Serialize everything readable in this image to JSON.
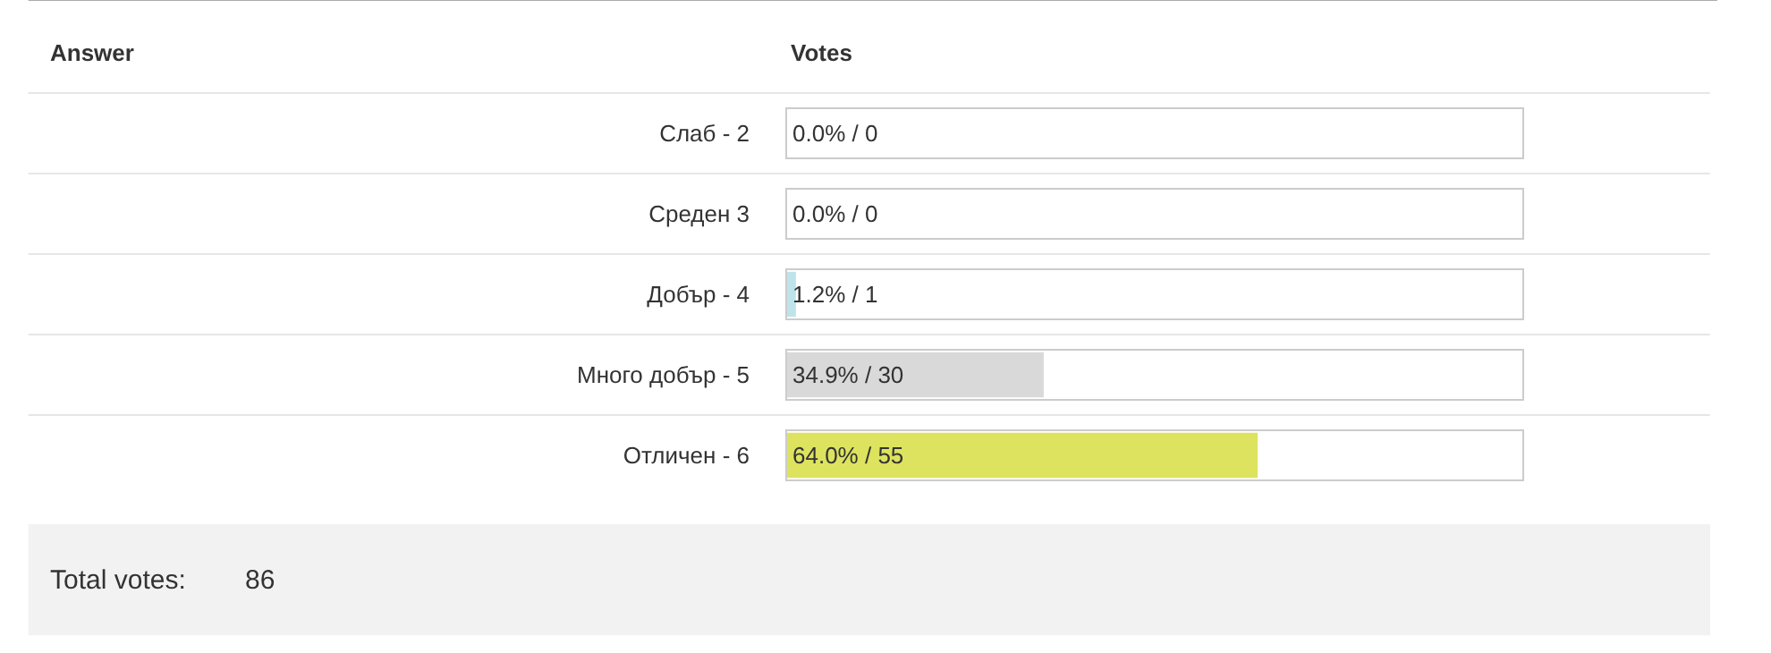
{
  "chart_data": {
    "type": "bar",
    "orientation": "horizontal",
    "categories": [
      "Слаб - 2",
      "Среден 3",
      "Добър - 4",
      "Много добър - 5",
      "Отличен - 6"
    ],
    "values": [
      0.0,
      0.0,
      1.2,
      34.9,
      64.0
    ],
    "colors": [
      "#d9d9d9",
      "#d9d9d9",
      "#bfe3ea",
      "#d9d9d9",
      "#dde35e"
    ],
    "value_labels": [
      "0.0% / 0",
      "0.0% / 0",
      "1.2% / 1",
      "34.9% / 30",
      "64.0% / 55"
    ],
    "xlim": [
      0,
      100
    ],
    "tick_labels": "y",
    "grid": false,
    "legend": false,
    "annotations": [
      "Answer",
      "Votes",
      "Total votes:",
      "86"
    ]
  }
}
